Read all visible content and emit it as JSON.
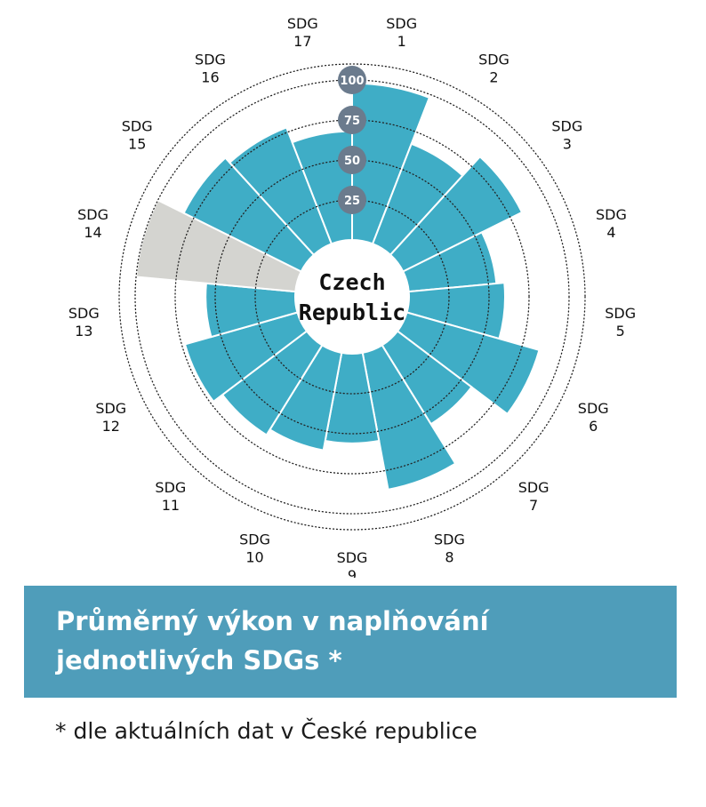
{
  "chart_data": {
    "type": "polar-bar",
    "center_label": [
      "Czech",
      "Republic"
    ],
    "categories": [
      [
        "SDG",
        "1"
      ],
      [
        "SDG",
        "2"
      ],
      [
        "SDG",
        "3"
      ],
      [
        "SDG",
        "4"
      ],
      [
        "SDG",
        "5"
      ],
      [
        "SDG",
        "6"
      ],
      [
        "SDG",
        "7"
      ],
      [
        "SDG",
        "8"
      ],
      [
        "SDG",
        "9"
      ],
      [
        "SDG",
        "10"
      ],
      [
        "SDG",
        "11"
      ],
      [
        "SDG",
        "12"
      ],
      [
        "SDG",
        "13"
      ],
      [
        "SDG",
        "14"
      ],
      [
        "SDG",
        "15"
      ],
      [
        "SDG",
        "16"
      ],
      [
        "SDG",
        "17"
      ]
    ],
    "values": [
      98,
      67,
      83,
      55,
      60,
      86,
      58,
      87,
      56,
      62,
      66,
      73,
      56,
      100,
      82,
      78,
      68
    ],
    "highlight": [
      false,
      false,
      false,
      false,
      false,
      false,
      false,
      false,
      false,
      false,
      false,
      false,
      false,
      true,
      false,
      false,
      false
    ],
    "radial_ticks": [
      "25",
      "50",
      "75",
      "100"
    ],
    "radial_tick_values": [
      25,
      50,
      75,
      100
    ],
    "rlim": [
      0,
      100
    ],
    "colors": {
      "bar": "#3FADC6",
      "highlight_bar": "#D4D4D0",
      "tick_badge": "#6B7B8D",
      "banner": "#4F9DBA",
      "grid": "#222222"
    }
  },
  "banner": {
    "title_line1": "Průměrný výkon v naplňování",
    "title_line2": "jednotlivých SDGs *"
  },
  "footnote": "* dle aktuálních dat v České republice"
}
